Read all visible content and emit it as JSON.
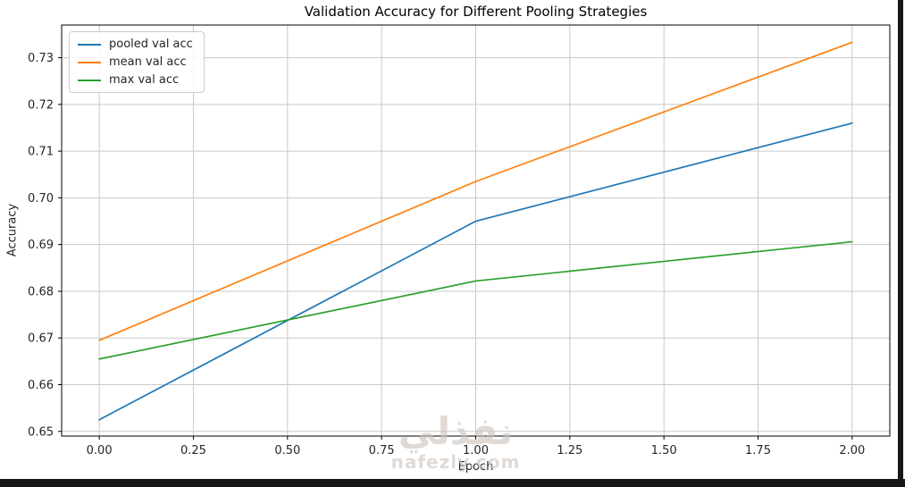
{
  "watermark": {
    "arabic": "نفذلي",
    "domain": "nafezly.com"
  },
  "chart_data": {
    "type": "line",
    "title": "Validation Accuracy for Different Pooling Strategies",
    "xlabel": "Epoch",
    "ylabel": "Accuracy",
    "x": [
      0,
      1,
      2
    ],
    "series": [
      {
        "name": "pooled val acc",
        "color": "#1f77b4",
        "values": [
          0.6525,
          0.695,
          0.716
        ]
      },
      {
        "name": "mean val acc",
        "color": "#ff7f0e",
        "values": [
          0.6695,
          0.7035,
          0.7333
        ]
      },
      {
        "name": "max val acc",
        "color": "#2ca02c",
        "values": [
          0.6655,
          0.6822,
          0.6906
        ]
      }
    ],
    "xlim": [
      -0.1,
      2.1
    ],
    "ylim": [
      0.649,
      0.737
    ],
    "xticks": [
      0.0,
      0.25,
      0.5,
      0.75,
      1.0,
      1.25,
      1.5,
      1.75,
      2.0
    ],
    "yticks": [
      0.65,
      0.66,
      0.67,
      0.68,
      0.69,
      0.7,
      0.71,
      0.72,
      0.73
    ],
    "grid": true,
    "grid_color": "#c9c9c9",
    "spine_color": "#000000",
    "tick_label_color": "#262626",
    "legend_position": "upper left",
    "line_width": 1.7
  }
}
